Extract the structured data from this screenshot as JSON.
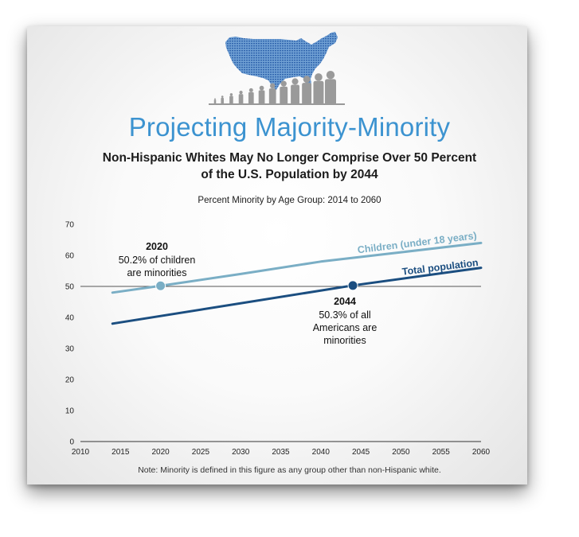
{
  "title": "Projecting Majority-Minority",
  "subtitle": {
    "line1": "Non-Hispanic Whites May No Longer Comprise Over 50 Percent",
    "line2": "of the U.S. Population by 2044"
  },
  "note": "Note: Minority is defined in this figure as any group other than non-Hispanic white.",
  "icon": "us-map-population-figures-icon",
  "colors": {
    "title": "#3c93d0",
    "children": "#7aaec5",
    "total": "#1b4e80",
    "map": "#4a7fc1",
    "figures": "#9a9a9a"
  },
  "chart_data": {
    "type": "line",
    "title": "Percent Minority by Age Group: 2014 to 2060",
    "xlim": [
      2010,
      2060
    ],
    "ylim": [
      0,
      70
    ],
    "xticks": [
      2010,
      2015,
      2020,
      2025,
      2030,
      2035,
      2040,
      2045,
      2050,
      2055,
      2060
    ],
    "yticks": [
      0,
      10,
      20,
      30,
      40,
      50,
      60,
      70
    ],
    "grid": false,
    "reference_line": 50,
    "series": [
      {
        "name": "Children (under 18 years)",
        "x": [
          2014,
          2020,
          2030,
          2040,
          2050,
          2060
        ],
        "y": [
          48,
          50.2,
          54,
          58,
          61,
          64
        ]
      },
      {
        "name": "Total population",
        "x": [
          2014,
          2044,
          2060
        ],
        "y": [
          38,
          50.3,
          56
        ]
      }
    ],
    "annotations": [
      {
        "x": 2020,
        "y": 50.2,
        "year": "2020",
        "lines": [
          "50.2% of children",
          "are minorities"
        ]
      },
      {
        "x": 2044,
        "y": 50.3,
        "year": "2044",
        "lines": [
          "50.3% of all",
          "Americans are",
          "minorities"
        ]
      }
    ]
  }
}
